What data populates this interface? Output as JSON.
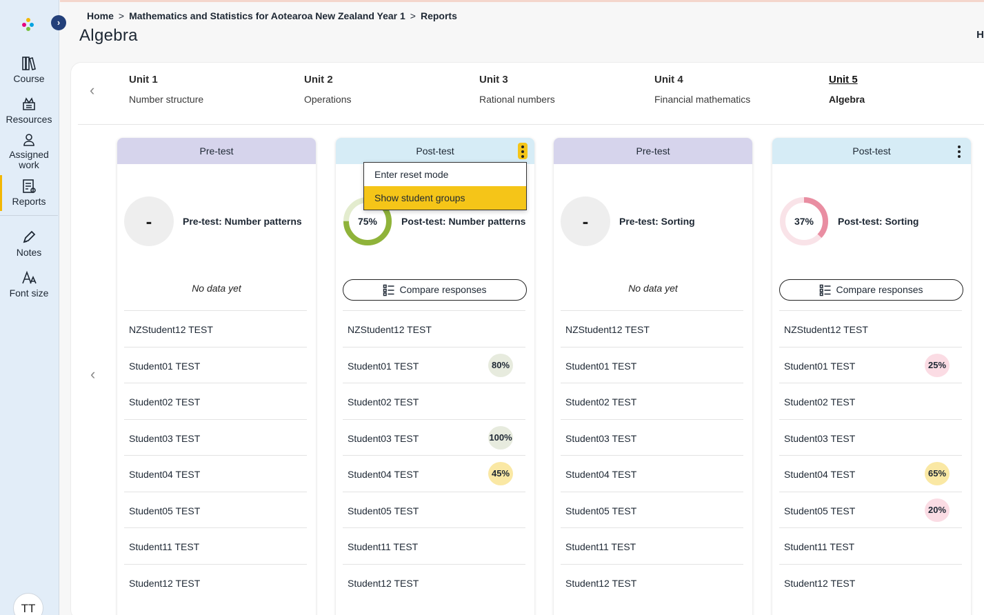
{
  "sidebar": {
    "expand_icon": "chevron-right-icon",
    "items": [
      {
        "label": "Course",
        "icon": "books-icon"
      },
      {
        "label": "Resources",
        "icon": "resources-icon"
      },
      {
        "label": "Assigned work",
        "icon": "assigned-work-icon"
      },
      {
        "label": "Reports",
        "icon": "reports-icon",
        "active": true
      },
      {
        "label": "Notes",
        "icon": "pencil-icon"
      },
      {
        "label": "Font size",
        "icon": "font-size-icon"
      }
    ],
    "avatar": "TT"
  },
  "breadcrumb": {
    "home": "Home",
    "course": "Mathematics and Statistics for Aotearoa New Zealand Year 1",
    "current": "Reports",
    "separator": ">"
  },
  "page": {
    "title": "Algebra",
    "corner_letter": "H"
  },
  "units": [
    {
      "num": "Unit 1",
      "name": "Number structure"
    },
    {
      "num": "Unit 2",
      "name": "Operations"
    },
    {
      "num": "Unit 3",
      "name": "Rational numbers"
    },
    {
      "num": "Unit 4",
      "name": "Financial mathematics"
    },
    {
      "num": "Unit 5",
      "name": "Algebra",
      "active": true
    }
  ],
  "cards": [
    {
      "header": "Pre-test",
      "type": "pre",
      "test_name": "Pre-test: Number patterns",
      "score": "-",
      "no_data": "No data yet",
      "students": [
        {
          "name": "NZStudent12 TEST",
          "score": ""
        },
        {
          "name": "Student01 TEST",
          "score": ""
        },
        {
          "name": "Student02 TEST",
          "score": ""
        },
        {
          "name": "Student03 TEST",
          "score": ""
        },
        {
          "name": "Student04 TEST",
          "score": ""
        },
        {
          "name": "Student05 TEST",
          "score": ""
        },
        {
          "name": "Student11 TEST",
          "score": ""
        },
        {
          "name": "Student12 TEST",
          "score": ""
        }
      ]
    },
    {
      "header": "Post-test",
      "type": "post",
      "test_name": "Post-test: Number patterns",
      "score": "75%",
      "score_value": 0.75,
      "ring_color": "#8fb33a",
      "compare_label": "Compare responses",
      "students": [
        {
          "name": "NZStudent12 TEST",
          "score": ""
        },
        {
          "name": "Student01 TEST",
          "score": "80%",
          "tone": "green"
        },
        {
          "name": "Student02 TEST",
          "score": ""
        },
        {
          "name": "Student03 TEST",
          "score": "100%",
          "tone": "green"
        },
        {
          "name": "Student04 TEST",
          "score": "45%",
          "tone": "yellow"
        },
        {
          "name": "Student05 TEST",
          "score": ""
        },
        {
          "name": "Student11 TEST",
          "score": ""
        },
        {
          "name": "Student12 TEST",
          "score": ""
        }
      ]
    },
    {
      "header": "Pre-test",
      "type": "pre",
      "test_name": "Pre-test: Sorting",
      "score": "-",
      "no_data": "No data yet",
      "students": [
        {
          "name": "NZStudent12 TEST",
          "score": ""
        },
        {
          "name": "Student01 TEST",
          "score": ""
        },
        {
          "name": "Student02 TEST",
          "score": ""
        },
        {
          "name": "Student03 TEST",
          "score": ""
        },
        {
          "name": "Student04 TEST",
          "score": ""
        },
        {
          "name": "Student05 TEST",
          "score": ""
        },
        {
          "name": "Student11 TEST",
          "score": ""
        },
        {
          "name": "Student12 TEST",
          "score": ""
        }
      ]
    },
    {
      "header": "Post-test",
      "type": "post",
      "test_name": "Post-test: Sorting",
      "score": "37%",
      "score_value": 0.37,
      "ring_color": "#e98ea2",
      "compare_label": "Compare responses",
      "students": [
        {
          "name": "NZStudent12 TEST",
          "score": ""
        },
        {
          "name": "Student01 TEST",
          "score": "25%",
          "tone": "pink"
        },
        {
          "name": "Student02 TEST",
          "score": ""
        },
        {
          "name": "Student03 TEST",
          "score": ""
        },
        {
          "name": "Student04 TEST",
          "score": "65%",
          "tone": "yellow"
        },
        {
          "name": "Student05 TEST",
          "score": "20%",
          "tone": "pink"
        },
        {
          "name": "Student11 TEST",
          "score": ""
        },
        {
          "name": "Student12 TEST",
          "score": ""
        }
      ]
    }
  ],
  "dropdown": {
    "items": [
      "Enter reset mode",
      "Show student groups"
    ],
    "highlighted": "Show student groups"
  },
  "colors": {
    "accent": "#f5c518",
    "sidebar_bg": "#e2edf8",
    "pre_header": "#d6d4ec",
    "post_header": "#d6ecf6"
  }
}
